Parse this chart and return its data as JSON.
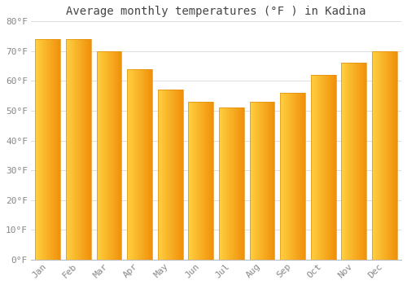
{
  "title": "Average monthly temperatures (°F ) in Kadina",
  "months": [
    "Jan",
    "Feb",
    "Mar",
    "Apr",
    "May",
    "Jun",
    "Jul",
    "Aug",
    "Sep",
    "Oct",
    "Nov",
    "Dec"
  ],
  "values": [
    74,
    74,
    70,
    64,
    57,
    53,
    51,
    53,
    56,
    62,
    66,
    70
  ],
  "bar_color_left": "#FFD040",
  "bar_color_right": "#F0900A",
  "ylim": [
    0,
    80
  ],
  "yticks": [
    0,
    10,
    20,
    30,
    40,
    50,
    60,
    70,
    80
  ],
  "ytick_labels": [
    "0°F",
    "10°F",
    "20°F",
    "30°F",
    "40°F",
    "50°F",
    "60°F",
    "70°F",
    "80°F"
  ],
  "background_color": "#FFFFFF",
  "grid_color": "#DDDDDD",
  "title_fontsize": 10,
  "tick_fontsize": 8,
  "title_color": "#444444",
  "tick_color": "#888888"
}
